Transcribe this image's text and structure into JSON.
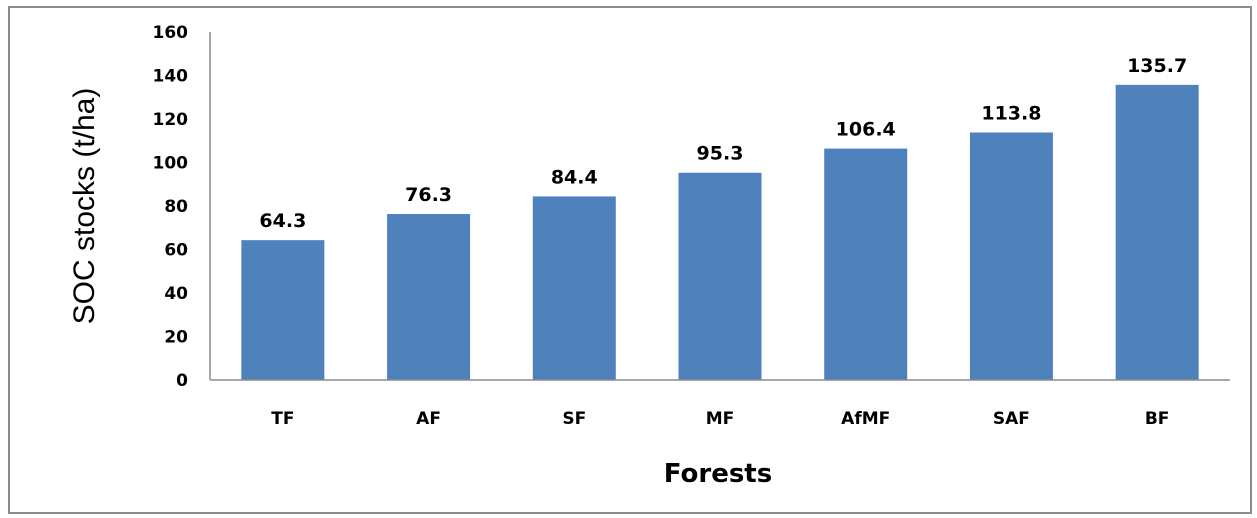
{
  "chart_data": {
    "type": "bar",
    "categories": [
      "TF",
      "AF",
      "SF",
      "MF",
      "AfMF",
      "SAF",
      "BF"
    ],
    "values": [
      64.3,
      76.3,
      84.4,
      95.3,
      106.4,
      113.8,
      135.7
    ],
    "data_labels": [
      "64.3",
      "76.3",
      "84.4",
      "95.3",
      "106.4",
      "113.8",
      "135.7"
    ],
    "title": "",
    "xlabel": "Forests",
    "ylabel": "SOC stocks (t/ha)",
    "ylim": [
      0,
      160
    ],
    "yticks": [
      "0",
      "20",
      "40",
      "60",
      "80",
      "100",
      "120",
      "140",
      "160"
    ],
    "bar_color": "#4f81bd",
    "grid": false,
    "legend": "none"
  }
}
